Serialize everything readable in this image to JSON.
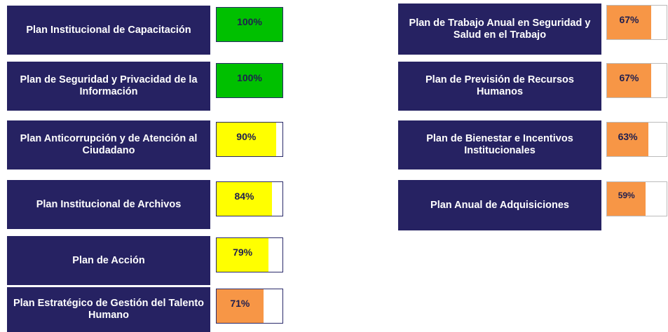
{
  "left": [
    {
      "label": "Plan Institucional de Capacitación",
      "value": 100,
      "value_label": "100%",
      "color": "#00c000"
    },
    {
      "label": "Plan de Seguridad y Privacidad de la Información",
      "value": 100,
      "value_label": "100%",
      "color": "#00c000"
    },
    {
      "label": "Plan Anticorrupción y de Atención al Ciudadano",
      "value": 90,
      "value_label": "90%",
      "color": "#ffff00"
    },
    {
      "label": "Plan Institucional de Archivos",
      "value": 84,
      "value_label": "84%",
      "color": "#ffff00"
    },
    {
      "label": "Plan de Acción",
      "value": 79,
      "value_label": "79%",
      "color": "#ffff00"
    },
    {
      "label": "Plan Estratégico de Gestión del Talento Humano",
      "value": 71,
      "value_label": "71%",
      "color": "#f79646"
    }
  ],
  "right": [
    {
      "label": "Plan de Trabajo Anual en Seguridad y Salud en el Trabajo",
      "value": 67,
      "value_label": "67%",
      "color": "#f79646"
    },
    {
      "label": "Plan de Previsión de Recursos Humanos",
      "value": 67,
      "value_label": "67%",
      "color": "#f79646"
    },
    {
      "label": "Plan de Bienestar e Incentivos Institucionales",
      "value": 63,
      "value_label": "63%",
      "color": "#f79646"
    },
    {
      "label": "Plan Anual de Adquisiciones",
      "value": 59,
      "value_label": "59%",
      "color": "#f79646"
    }
  ]
}
